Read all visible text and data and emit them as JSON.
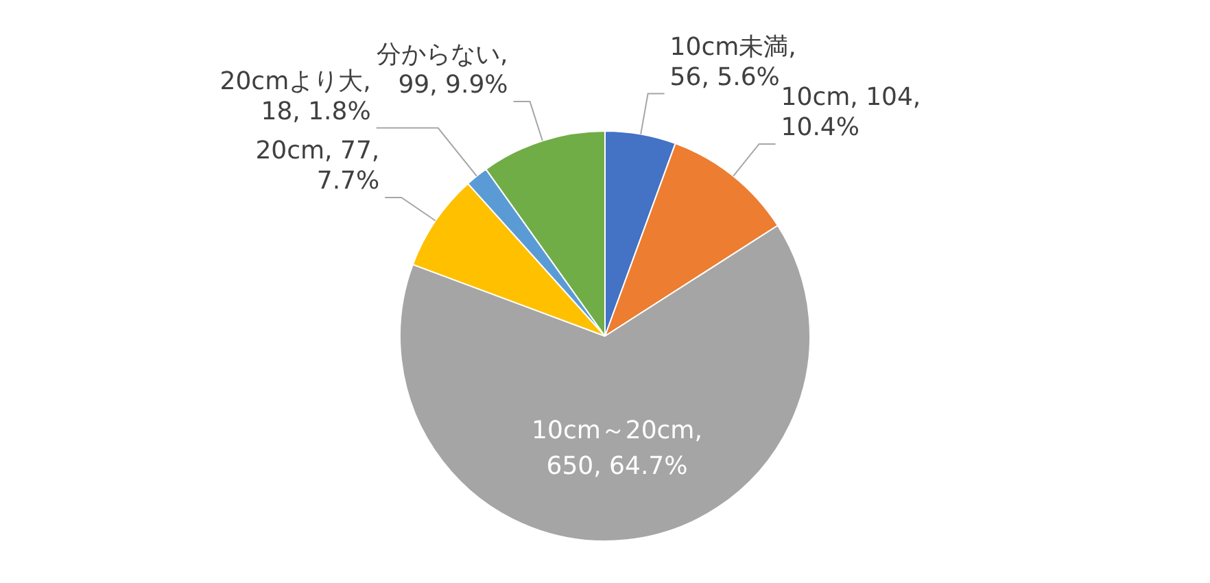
{
  "chart_data": {
    "type": "pie",
    "categories": [
      "10cm未満",
      "10cm",
      "10cm～20cm",
      "20cm",
      "20cmより大",
      "分からない"
    ],
    "values": [
      56,
      104,
      650,
      77,
      18,
      99
    ],
    "colors": [
      "#4472c4",
      "#ed7d31",
      "#a5a5a5",
      "#ffc000",
      "#5b9bd5",
      "#70ad47"
    ],
    "value_labels": [
      ", 56, 5.6%",
      ", 104, 10.4%",
      ", 650, 64.7%",
      ", 77, 7.7%",
      ", 18, 1.8%",
      ", 99, 9.9%"
    ],
    "legend": false
  }
}
